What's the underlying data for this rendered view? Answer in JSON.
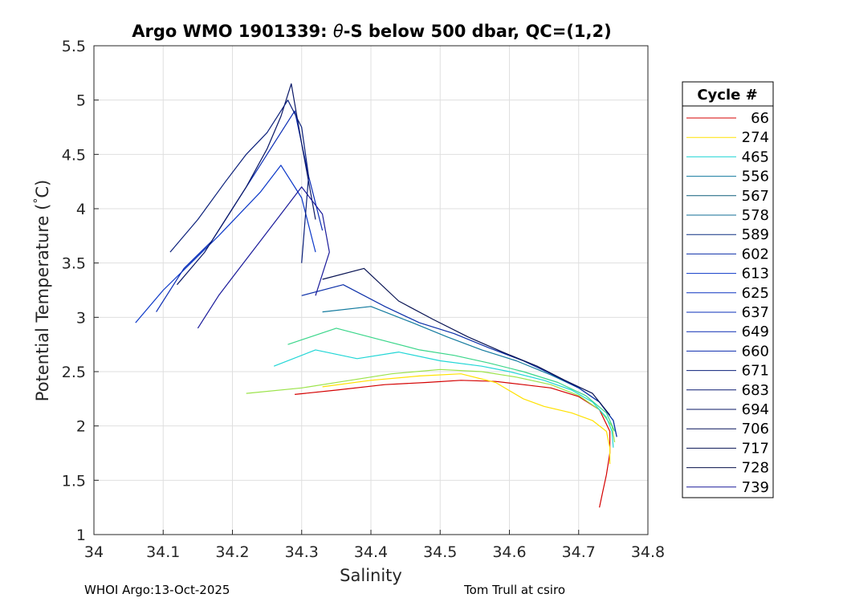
{
  "chart_data": {
    "type": "line",
    "title_parts": [
      "Argo WMO 1901339: ",
      "θ",
      "-S below 500 dbar,  QC=(1,2)"
    ],
    "xlabel": "Salinity",
    "ylabel_parts": [
      "Potential Temperature (",
      "°",
      "C)"
    ],
    "xlim": [
      34,
      34.8
    ],
    "ylim": [
      1,
      5.5
    ],
    "xticks": [
      "34",
      "34.1",
      "34.2",
      "34.3",
      "34.4",
      "34.5",
      "34.6",
      "34.7",
      "34.8"
    ],
    "yticks": [
      "1",
      "1.5",
      "2",
      "2.5",
      "3",
      "3.5",
      "4",
      "4.5",
      "5",
      "5.5"
    ],
    "grid": true,
    "legend": {
      "title": "Cycle #",
      "placement": "right",
      "entries": [
        {
          "label": "66",
          "color": "#d40000"
        },
        {
          "label": "274",
          "color": "#ffe100"
        },
        {
          "label": "465",
          "color": "#22d6d6"
        },
        {
          "label": "556",
          "color": "#127a9e"
        },
        {
          "label": "567",
          "color": "#0f5f7a"
        },
        {
          "label": "578",
          "color": "#126e96"
        },
        {
          "label": "589",
          "color": "#0c2f80"
        },
        {
          "label": "602",
          "color": "#0b2fa8"
        },
        {
          "label": "613",
          "color": "#0a37c8"
        },
        {
          "label": "625",
          "color": "#0a33c0"
        },
        {
          "label": "637",
          "color": "#0a2fba"
        },
        {
          "label": "649",
          "color": "#0a2cb4"
        },
        {
          "label": "660",
          "color": "#0a29ae"
        },
        {
          "label": "671",
          "color": "#0a1f7a"
        },
        {
          "label": "683",
          "color": "#0a1a70"
        },
        {
          "label": "694",
          "color": "#091766"
        },
        {
          "label": "706",
          "color": "#08145c"
        },
        {
          "label": "717",
          "color": "#071252"
        },
        {
          "label": "728",
          "color": "#060f48"
        },
        {
          "label": "739",
          "color": "#1a1a9a"
        }
      ]
    },
    "series": [
      {
        "color": "#d40000",
        "x": [
          34.29,
          34.35,
          34.42,
          34.48,
          34.53,
          34.58,
          34.62,
          34.66,
          34.7,
          34.73,
          34.745,
          34.745,
          34.74,
          34.735,
          34.73
        ],
        "y": [
          2.29,
          2.33,
          2.38,
          2.4,
          2.42,
          2.41,
          2.38,
          2.35,
          2.27,
          2.15,
          1.95,
          1.75,
          1.55,
          1.4,
          1.25
        ]
      },
      {
        "color": "#ffe100",
        "x": [
          34.33,
          34.4,
          34.47,
          34.53,
          34.58,
          34.62,
          34.65,
          34.69,
          34.72,
          34.74,
          34.745,
          34.745
        ],
        "y": [
          2.36,
          2.42,
          2.46,
          2.48,
          2.4,
          2.25,
          2.18,
          2.12,
          2.05,
          1.95,
          1.8,
          1.65
        ]
      },
      {
        "color": "#9be34a",
        "x": [
          34.22,
          34.3,
          34.37,
          34.43,
          34.5,
          34.56,
          34.61,
          34.66,
          34.7,
          34.73,
          34.748,
          34.752
        ],
        "y": [
          2.3,
          2.35,
          2.42,
          2.48,
          2.52,
          2.5,
          2.45,
          2.38,
          2.28,
          2.15,
          2.0,
          1.85
        ]
      },
      {
        "color": "#22d6d6",
        "x": [
          34.26,
          34.32,
          34.38,
          34.44,
          34.5,
          34.56,
          34.6,
          34.65,
          34.69,
          34.72,
          34.74,
          34.748,
          34.75
        ],
        "y": [
          2.55,
          2.7,
          2.62,
          2.68,
          2.6,
          2.55,
          2.5,
          2.42,
          2.33,
          2.22,
          2.08,
          1.95,
          1.8
        ]
      },
      {
        "color": "#3ad68a",
        "x": [
          34.28,
          34.35,
          34.41,
          34.47,
          34.52,
          34.57,
          34.62,
          34.67,
          34.71,
          34.74,
          34.752
        ],
        "y": [
          2.75,
          2.9,
          2.8,
          2.7,
          2.65,
          2.58,
          2.5,
          2.4,
          2.28,
          2.12,
          1.95
        ]
      },
      {
        "color": "#127a9e",
        "x": [
          34.33,
          34.4,
          34.46,
          34.51,
          34.56,
          34.61,
          34.66,
          34.7,
          34.73,
          34.75,
          34.755
        ],
        "y": [
          3.05,
          3.1,
          2.95,
          2.82,
          2.7,
          2.6,
          2.47,
          2.35,
          2.22,
          2.05,
          1.9
        ]
      },
      {
        "color": "#0b2fa8",
        "x": [
          34.3,
          34.36,
          34.42,
          34.47,
          34.52,
          34.57,
          34.62,
          34.66,
          34.7,
          34.73,
          34.75,
          34.755
        ],
        "y": [
          3.2,
          3.3,
          3.1,
          2.95,
          2.85,
          2.72,
          2.6,
          2.48,
          2.35,
          2.22,
          2.05,
          1.9
        ]
      },
      {
        "color": "#071252",
        "x": [
          34.33,
          34.39,
          34.44,
          34.49,
          34.54,
          34.59,
          34.64,
          34.68,
          34.72,
          34.745
        ],
        "y": [
          3.35,
          3.45,
          3.15,
          2.98,
          2.82,
          2.68,
          2.55,
          2.42,
          2.3,
          2.1
        ]
      },
      {
        "color": "#0a37c8",
        "x": [
          34.06,
          34.1,
          34.14,
          34.18,
          34.21,
          34.24,
          34.27,
          34.3,
          34.32
        ],
        "y": [
          2.95,
          3.25,
          3.5,
          3.75,
          3.95,
          4.15,
          4.4,
          4.1,
          3.6
        ]
      },
      {
        "color": "#0a2cb4",
        "x": [
          34.09,
          34.13,
          34.17,
          34.2,
          34.23,
          34.26,
          34.29,
          34.31,
          34.33
        ],
        "y": [
          3.05,
          3.45,
          3.7,
          4.0,
          4.3,
          4.6,
          4.9,
          4.3,
          3.8
        ]
      },
      {
        "color": "#091766",
        "x": [
          34.12,
          34.16,
          34.19,
          34.22,
          34.25,
          34.27,
          34.285,
          34.3,
          34.32
        ],
        "y": [
          3.3,
          3.6,
          3.9,
          4.2,
          4.55,
          4.85,
          5.15,
          4.6,
          3.9
        ]
      },
      {
        "color": "#1a1a9a",
        "x": [
          34.15,
          34.18,
          34.21,
          34.24,
          34.27,
          34.3,
          34.33,
          34.34,
          34.32
        ],
        "y": [
          2.9,
          3.2,
          3.45,
          3.7,
          3.95,
          4.2,
          3.95,
          3.6,
          3.2
        ]
      },
      {
        "color": "#0a1f7a",
        "x": [
          34.11,
          34.15,
          34.19,
          34.22,
          34.25,
          34.28,
          34.3,
          34.31,
          34.3
        ],
        "y": [
          3.6,
          3.9,
          4.25,
          4.5,
          4.7,
          5.0,
          4.75,
          4.3,
          3.5
        ]
      }
    ]
  },
  "footer": {
    "left": "WHOI Argo:13-Oct-2025",
    "right": "Tom Trull at csiro"
  }
}
